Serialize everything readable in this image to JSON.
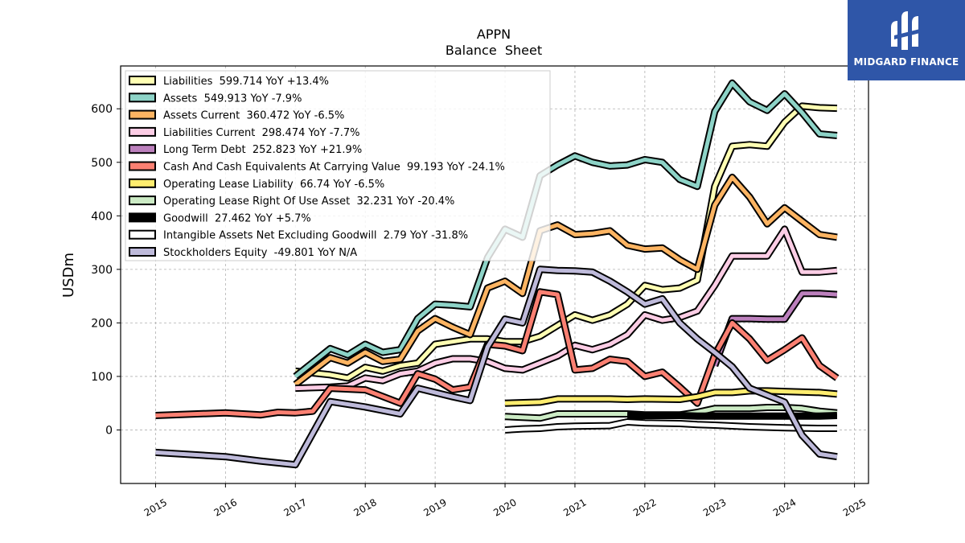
{
  "brand": {
    "name": "MIDGARD FINANCE",
    "logo_icon": "midgard-logo-icon"
  },
  "chart_data": {
    "type": "line",
    "title": "APPN",
    "subtitle": "Balance  Sheet",
    "xlabel": "",
    "ylabel": "USDm",
    "xlim": [
      2014.5,
      2025.2
    ],
    "ylim": [
      -100,
      680
    ],
    "grid": true,
    "legend_position": "top-left",
    "x_ticks": [
      2015,
      2016,
      2017,
      2018,
      2019,
      2020,
      2021,
      2022,
      2023,
      2024,
      2025
    ],
    "y_ticks": [
      0,
      100,
      200,
      300,
      400,
      500,
      600
    ],
    "series": [
      {
        "name": "Liabilities  599.714 YoY +13.4%",
        "color": "#ffffb3",
        "x": [
          2017.0,
          2017.5,
          2017.75,
          2018.0,
          2018.25,
          2018.5,
          2018.75,
          2019.0,
          2019.25,
          2019.5,
          2019.75,
          2020.0,
          2020.25,
          2020.5,
          2020.75,
          2021.0,
          2021.25,
          2021.5,
          2021.75,
          2022.0,
          2022.25,
          2022.5,
          2022.75,
          2023.0,
          2023.25,
          2023.5,
          2023.75,
          2024.0,
          2024.25,
          2024.5,
          2024.75
        ],
        "y": [
          110,
          103,
          97,
          117,
          110,
          120,
          125,
          160,
          165,
          170,
          170,
          165,
          165,
          175,
          195,
          215,
          205,
          215,
          235,
          270,
          262,
          265,
          280,
          455,
          530,
          533,
          530,
          575,
          605,
          602,
          601
        ]
      },
      {
        "name": "Assets  549.913 YoY -7.9%",
        "color": "#8dd3c7",
        "x": [
          2017.0,
          2017.5,
          2017.75,
          2018.0,
          2018.25,
          2018.5,
          2018.75,
          2019.0,
          2019.25,
          2019.5,
          2019.75,
          2020.0,
          2020.25,
          2020.5,
          2020.75,
          2021.0,
          2021.25,
          2021.5,
          2021.75,
          2022.0,
          2022.25,
          2022.5,
          2022.75,
          2023.0,
          2023.25,
          2023.5,
          2023.75,
          2024.0,
          2024.25,
          2024.5,
          2024.75
        ],
        "y": [
          100,
          152,
          140,
          160,
          145,
          150,
          208,
          235,
          233,
          230,
          322,
          375,
          360,
          475,
          495,
          512,
          500,
          493,
          495,
          505,
          500,
          468,
          455,
          595,
          648,
          613,
          597,
          628,
          593,
          553,
          550
        ]
      },
      {
        "name": "Assets Current  360.472 YoY -6.5%",
        "color": "#fdb462",
        "x": [
          2017.0,
          2017.5,
          2017.75,
          2018.0,
          2018.25,
          2018.5,
          2018.75,
          2019.0,
          2019.25,
          2019.5,
          2019.75,
          2020.0,
          2020.25,
          2020.5,
          2020.75,
          2021.0,
          2021.25,
          2021.5,
          2021.75,
          2022.0,
          2022.25,
          2022.5,
          2022.75,
          2023.0,
          2023.25,
          2023.5,
          2023.75,
          2024.0,
          2024.25,
          2024.5,
          2024.75
        ],
        "y": [
          85,
          135,
          125,
          145,
          128,
          132,
          185,
          208,
          192,
          178,
          265,
          278,
          255,
          372,
          383,
          365,
          367,
          372,
          345,
          338,
          340,
          318,
          300,
          420,
          472,
          435,
          385,
          415,
          390,
          365,
          360
        ]
      },
      {
        "name": "Liabilities Current  298.474 YoY -7.7%",
        "color": "#fccde5",
        "x": [
          2017.0,
          2017.5,
          2017.75,
          2018.0,
          2018.25,
          2018.5,
          2018.75,
          2019.0,
          2019.25,
          2019.5,
          2019.75,
          2020.0,
          2020.25,
          2020.5,
          2020.75,
          2021.0,
          2021.25,
          2021.5,
          2021.75,
          2022.0,
          2022.25,
          2022.5,
          2022.75,
          2023.0,
          2023.25,
          2023.5,
          2023.75,
          2024.0,
          2024.25,
          2024.5,
          2024.75
        ],
        "y": [
          78,
          80,
          82,
          97,
          92,
          105,
          110,
          125,
          133,
          133,
          128,
          115,
          112,
          125,
          138,
          158,
          150,
          160,
          178,
          215,
          205,
          210,
          222,
          270,
          325,
          325,
          325,
          375,
          295,
          295,
          298
        ]
      },
      {
        "name": "Long Term Debt  252.823 YoY +21.9%",
        "color": "#bc80bd",
        "x": [
          2023.0,
          2023.25,
          2023.5,
          2023.75,
          2024.0,
          2024.25,
          2024.5,
          2024.75
        ],
        "y": [
          120,
          208,
          208,
          207,
          207,
          255,
          255,
          253
        ]
      },
      {
        "name": "Cash And Cash Equivalents At Carrying Value  99.193 YoY -24.1%",
        "color": "#fb8072",
        "x": [
          2015.0,
          2016.0,
          2016.5,
          2016.75,
          2017.0,
          2017.25,
          2017.5,
          2018.0,
          2018.5,
          2018.75,
          2019.0,
          2019.25,
          2019.5,
          2019.75,
          2020.0,
          2020.25,
          2020.5,
          2020.75,
          2021.0,
          2021.25,
          2021.5,
          2021.75,
          2022.0,
          2022.25,
          2022.5,
          2022.75,
          2023.0,
          2023.25,
          2023.5,
          2023.75,
          2024.0,
          2024.25,
          2024.5,
          2024.75
        ],
        "y": [
          27,
          32,
          28,
          33,
          32,
          35,
          78,
          75,
          50,
          105,
          95,
          75,
          80,
          160,
          157,
          148,
          258,
          253,
          112,
          115,
          132,
          128,
          100,
          108,
          80,
          50,
          140,
          200,
          170,
          130,
          150,
          172,
          120,
          97
        ]
      },
      {
        "name": "Operating Lease Liability  66.74 YoY -6.5%",
        "color": "#ffed6f",
        "x": [
          2020.0,
          2020.5,
          2020.75,
          2021.0,
          2021.5,
          2021.75,
          2022.0,
          2022.5,
          2022.75,
          2023.0,
          2023.25,
          2023.5,
          2023.75,
          2024.0,
          2024.5,
          2024.75
        ],
        "y": [
          50,
          52,
          58,
          58,
          58,
          57,
          58,
          57,
          62,
          70,
          70,
          73,
          73,
          72,
          70,
          67
        ]
      },
      {
        "name": "Operating Lease Right Of Use Asset  32.231 YoY -20.4%",
        "color": "#ccebc5",
        "x": [
          2020.0,
          2020.5,
          2020.75,
          2021.0,
          2021.5,
          2021.75,
          2022.0,
          2022.5,
          2022.75,
          2023.0,
          2023.25,
          2023.5,
          2023.75,
          2024.0,
          2024.25,
          2024.5,
          2024.75
        ],
        "y": [
          25,
          22,
          30,
          30,
          30,
          30,
          28,
          28,
          33,
          40,
          40,
          40,
          42,
          42,
          40,
          35,
          32
        ]
      },
      {
        "name": "Goodwill  27.462 YoY +5.7%",
        "color": "#000000",
        "x": [
          2021.75,
          2022.0,
          2022.5,
          2022.75,
          2023.0,
          2023.25,
          2023.5,
          2023.75,
          2024.0,
          2024.25,
          2024.5,
          2024.75
        ],
        "y": [
          27,
          27,
          27,
          26,
          26,
          26,
          26,
          26,
          26,
          26,
          26,
          27
        ]
      },
      {
        "name": "Intangible Assets Net Excluding Goodwill  2.79 YoY -31.8%",
        "color": "#ffffff",
        "x": [
          2020.0,
          2020.25,
          2020.5,
          2020.75,
          2021.0,
          2021.5,
          2021.75,
          2022.0,
          2022.5,
          2022.75,
          2023.0,
          2023.5,
          2024.0,
          2024.5,
          2024.75
        ],
        "y": [
          0,
          2,
          3,
          6,
          7,
          8,
          15,
          13,
          12,
          10,
          9,
          6,
          4,
          3,
          3
        ]
      },
      {
        "name": "Stockholders Equity  -49.801 YoY N/A",
        "color": "#bebada",
        "x": [
          2015.0,
          2016.0,
          2016.5,
          2017.0,
          2017.5,
          2018.0,
          2018.5,
          2018.75,
          2019.0,
          2019.25,
          2019.5,
          2019.75,
          2020.0,
          2020.25,
          2020.5,
          2020.75,
          2021.0,
          2021.25,
          2021.5,
          2021.75,
          2022.0,
          2022.25,
          2022.5,
          2022.75,
          2023.0,
          2023.25,
          2023.5,
          2023.75,
          2024.0,
          2024.25,
          2024.5,
          2024.75
        ],
        "y": [
          -42,
          -50,
          -58,
          -65,
          53,
          43,
          30,
          78,
          70,
          62,
          55,
          155,
          207,
          200,
          300,
          298,
          297,
          295,
          278,
          258,
          235,
          245,
          200,
          170,
          145,
          118,
          78,
          65,
          52,
          -10,
          -45,
          -50
        ]
      }
    ]
  }
}
